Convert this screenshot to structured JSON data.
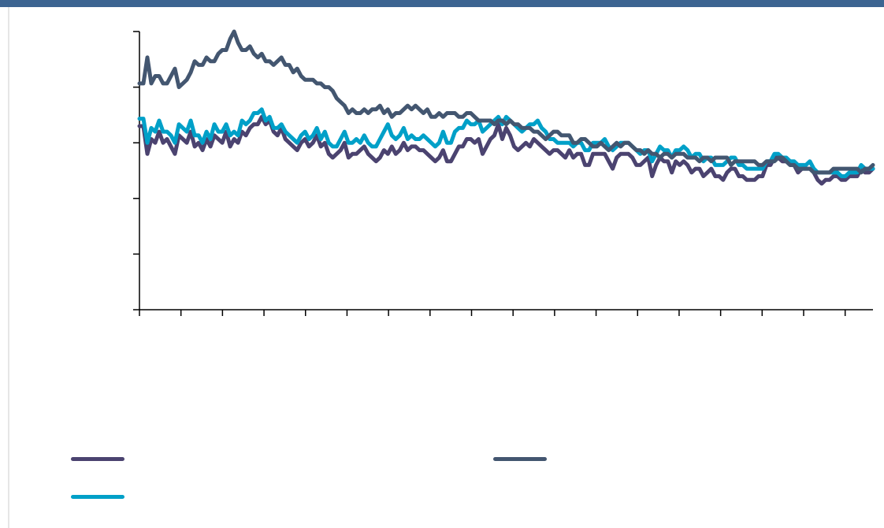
{
  "header_bar_color": "#3c6491",
  "chart_data": {
    "type": "line",
    "title": "",
    "xlabel": "",
    "ylabel": "",
    "y_tick_count": 6,
    "x_tick_count": 18,
    "grid": false,
    "legend_position": "bottom",
    "series": [
      {
        "color": "#4b4370",
        "values": [
          99.5,
          99.5,
          92,
          96,
          95,
          98,
          95,
          96,
          94,
          92,
          97,
          96,
          95,
          98,
          94,
          95,
          93,
          96,
          94,
          97,
          96,
          95,
          98,
          94,
          96,
          95,
          98,
          97,
          99,
          100,
          100,
          102,
          100,
          101,
          98,
          97,
          99,
          96,
          95,
          94,
          93,
          95,
          96,
          94,
          95,
          97,
          94,
          95,
          92,
          91,
          92,
          93,
          95,
          91,
          92,
          92,
          93,
          94,
          92,
          91,
          90,
          91,
          93,
          92,
          94,
          92,
          93,
          95,
          93,
          94,
          94,
          93,
          93,
          92,
          91,
          90,
          91,
          93,
          90,
          90,
          92,
          94,
          94,
          96,
          96,
          95,
          96,
          92,
          94,
          96,
          97,
          100,
          96,
          99,
          97,
          94,
          93,
          94,
          95,
          94,
          96,
          95,
          94,
          93,
          92,
          93,
          93,
          92,
          91,
          93,
          91,
          92,
          92,
          89,
          89,
          92,
          92,
          92,
          92,
          90,
          88,
          91,
          92,
          92,
          92,
          91,
          89,
          89,
          90,
          91,
          86,
          89,
          91,
          90,
          90,
          87,
          90,
          89,
          90,
          89,
          87,
          88,
          88,
          86,
          87,
          88,
          86,
          86,
          85,
          87,
          88,
          88,
          86,
          86,
          85,
          85,
          85,
          86,
          86,
          89,
          89,
          91,
          91,
          90,
          90,
          89,
          89,
          87,
          88,
          88,
          88,
          87,
          85,
          84,
          85,
          85,
          86,
          86,
          85,
          85,
          86,
          86,
          86,
          88,
          87,
          87,
          88
        ]
      },
      {
        "color": "#00a0c8",
        "values": [
          101.5,
          101.5,
          95,
          99,
          98,
          101,
          98,
          98,
          97,
          95,
          100,
          99,
          98,
          101,
          97,
          97,
          95,
          98,
          96,
          100,
          98,
          98,
          100,
          97,
          98,
          97,
          101,
          100,
          101,
          103,
          103,
          104,
          101,
          102,
          99,
          99,
          100,
          98,
          97,
          96,
          95,
          97,
          98,
          96,
          97,
          99,
          96,
          98,
          95,
          94,
          94,
          96,
          98,
          95,
          95,
          96,
          95,
          97,
          95,
          94,
          94,
          96,
          98,
          100,
          97,
          96,
          97,
          99,
          96,
          97,
          96,
          96,
          97,
          96,
          95,
          94,
          95,
          98,
          95,
          95,
          98,
          99,
          99,
          101,
          100,
          100,
          101,
          98,
          99,
          100,
          101,
          102,
          100,
          102,
          101,
          100,
          99,
          98,
          99,
          100,
          100,
          101,
          99,
          98,
          96,
          96,
          95,
          95,
          95,
          95,
          94,
          95,
          95,
          93,
          93,
          95,
          95,
          95,
          96,
          94,
          93,
          94,
          95,
          95,
          95,
          94,
          93,
          92,
          93,
          93,
          90,
          92,
          94,
          93,
          93,
          91,
          93,
          93,
          94,
          93,
          91,
          92,
          92,
          90,
          91,
          91,
          89,
          89,
          89,
          90,
          91,
          91,
          89,
          89,
          88,
          88,
          88,
          88,
          88,
          90,
          90,
          92,
          92,
          91,
          91,
          90,
          90,
          89,
          89,
          89,
          90,
          88,
          87,
          87,
          87,
          87,
          87,
          87,
          86,
          86,
          87,
          87,
          87,
          89,
          88,
          88,
          88
        ]
      },
      {
        "color": "#435670",
        "values": [
          111,
          111,
          118,
          111,
          113,
          113,
          111,
          111,
          113,
          115,
          110,
          111,
          112,
          114,
          117,
          116,
          116,
          118,
          117,
          117,
          119,
          120,
          120,
          123,
          125,
          122,
          120,
          120,
          121,
          119,
          118,
          119,
          117,
          117,
          116,
          117,
          118,
          116,
          116,
          114,
          115,
          113,
          112,
          112,
          112,
          111,
          111,
          110,
          110,
          109,
          107,
          106,
          105,
          103,
          104,
          103,
          103,
          104,
          103,
          104,
          104,
          105,
          103,
          104,
          102,
          103,
          103,
          104,
          105,
          104,
          105,
          104,
          103,
          104,
          102,
          102,
          103,
          102,
          103,
          103,
          103,
          102,
          102,
          103,
          103,
          102,
          101,
          101,
          101,
          101,
          100,
          101,
          101,
          100,
          101,
          100,
          100,
          99,
          99,
          99,
          98,
          98,
          97,
          96,
          97,
          98,
          98,
          97,
          97,
          97,
          95,
          95,
          96,
          96,
          95,
          94,
          94,
          95,
          94,
          93,
          94,
          95,
          94,
          95,
          95,
          94,
          93,
          93,
          92,
          93,
          92,
          92,
          91,
          92,
          92,
          91,
          92,
          92,
          92,
          91,
          91,
          91,
          90,
          91,
          91,
          90,
          91,
          91,
          91,
          91,
          89,
          90,
          90,
          90,
          90,
          90,
          90,
          89,
          89,
          90,
          90,
          90,
          91,
          91,
          90,
          89,
          89,
          88,
          88,
          88,
          88,
          87,
          87,
          87,
          87,
          87,
          88,
          88,
          88,
          88,
          88,
          88,
          88,
          87,
          88,
          88,
          89
        ]
      }
    ]
  }
}
